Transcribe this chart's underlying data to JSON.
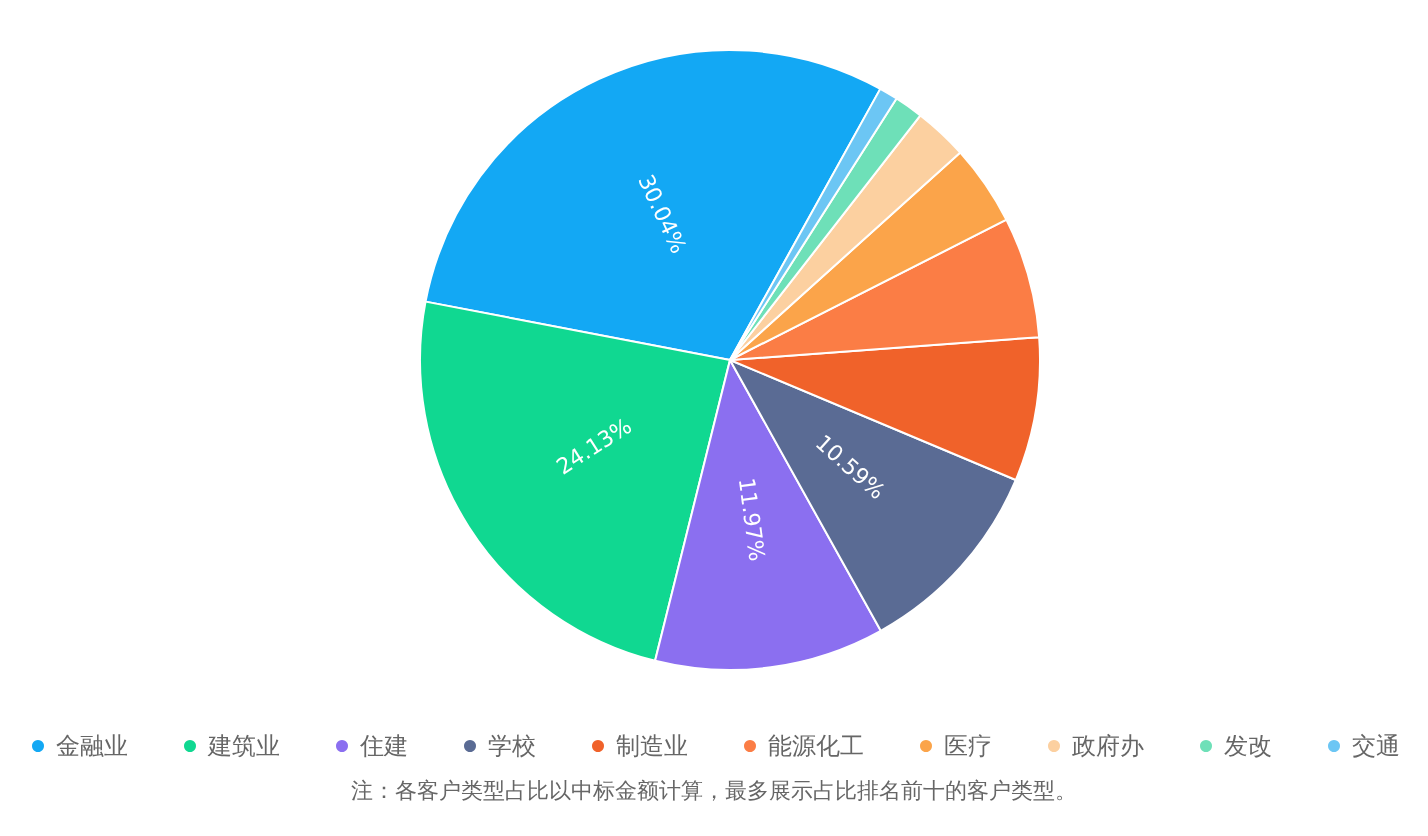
{
  "chart_data": {
    "type": "pie",
    "categories": [
      "金融业",
      "建筑业",
      "住建",
      "学校",
      "制造业",
      "能源化工",
      "医疗",
      "政府办",
      "发改",
      "交通"
    ],
    "values": [
      30.04,
      24.13,
      11.97,
      10.59,
      7.5,
      6.3,
      4.2,
      2.8,
      1.5,
      0.97
    ],
    "value_labels": [
      "30.04%",
      "24.13%",
      "11.97%",
      "10.59%",
      null,
      null,
      null,
      null,
      null,
      null
    ],
    "colors": [
      "#13a8f4",
      "#10d891",
      "#8b6ff0",
      "#5a6b94",
      "#f0622a",
      "#fb7d45",
      "#fba44a",
      "#fcd0a0",
      "#6ee0b8",
      "#6cc6f4"
    ],
    "legend": "bottom",
    "annotations": [
      "注：各客户类型占比以中标金额计算，最多展示占比排名前十的客户类型。"
    ]
  }
}
